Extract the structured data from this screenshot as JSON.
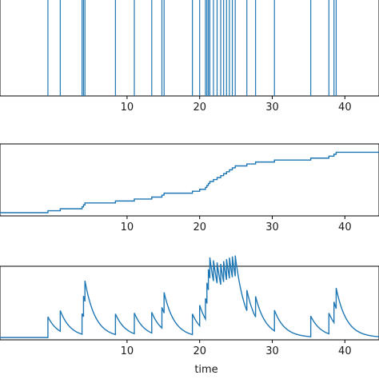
{
  "figure": {
    "xlabel": "time",
    "line_color": "#1f77b4"
  },
  "chart_data": [
    {
      "type": "line",
      "subtype": "event-raster",
      "xlim": [
        -7.5,
        44.7
      ],
      "xticks": [
        10,
        20,
        30,
        40
      ],
      "event_times": [
        -0.9,
        0.8,
        3.8,
        4.0,
        4.2,
        8.4,
        11.0,
        13.4,
        14.8,
        15.1,
        19.0,
        20.0,
        20.8,
        21.0,
        21.2,
        21.4,
        21.9,
        22.4,
        22.9,
        23.3,
        23.7,
        24.1,
        24.5,
        24.9,
        26.5,
        27.7,
        30.3,
        35.3,
        37.8,
        38.5,
        38.8
      ],
      "series": [
        {
          "values": []
        }
      ]
    },
    {
      "type": "line",
      "subtype": "step",
      "xlim": [
        -7.5,
        44.7
      ],
      "ylim": [
        0,
        32
      ],
      "xticks": [
        10,
        20,
        30,
        40
      ],
      "series": [
        {
          "x": [
            -0.9,
            0.8,
            3.8,
            4.0,
            4.2,
            8.4,
            11.0,
            13.4,
            14.8,
            15.1,
            19.0,
            20.0,
            20.8,
            21.0,
            21.2,
            21.4,
            21.9,
            22.4,
            22.9,
            23.3,
            23.7,
            24.1,
            24.5,
            24.9,
            26.5,
            27.7,
            30.3,
            35.3,
            37.8,
            38.5,
            38.8,
            44.7
          ],
          "values": [
            1,
            2,
            3,
            4,
            5,
            6,
            7,
            8,
            9,
            10,
            11,
            12,
            13,
            14,
            15,
            16,
            17,
            18,
            19,
            20,
            21,
            22,
            23,
            24,
            25,
            26,
            27,
            28,
            29,
            30,
            31,
            31
          ]
        }
      ]
    },
    {
      "type": "line",
      "subtype": "intensity",
      "xlim": [
        -7.5,
        44.7
      ],
      "ylim": [
        0,
        3.2
      ],
      "xticks": [
        10,
        20,
        30,
        40
      ],
      "baseline": 0.1,
      "jump": 0.9,
      "decay": 0.7,
      "series": [
        {
          "values": []
        }
      ]
    }
  ]
}
